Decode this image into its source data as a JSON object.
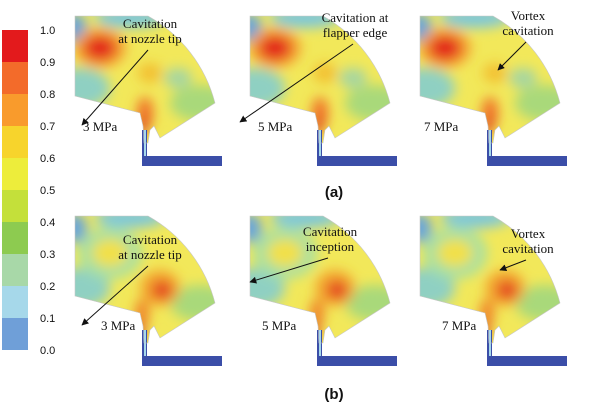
{
  "colorbar": {
    "ticks": [
      "1.0",
      "0.9",
      "0.8",
      "0.7",
      "0.6",
      "0.5",
      "0.4",
      "0.3",
      "0.2",
      "0.1",
      "0.0"
    ],
    "colors": [
      "#e31a1c",
      "#f36b2a",
      "#f99b2c",
      "#f7d42c",
      "#eded3b",
      "#c4e03a",
      "#8dcb50",
      "#a8d8a8",
      "#a6d8ea",
      "#6f9fd8",
      "#3b4ea8"
    ]
  },
  "rows": [
    {
      "label": "(a)",
      "panels": [
        {
          "pressure": "3 MPa",
          "annotation": [
            "Cavitation",
            "at nozzle tip"
          ]
        },
        {
          "pressure": "5 MPa",
          "annotation": [
            "Cavitation at",
            "flapper edge"
          ]
        },
        {
          "pressure": "7 MPa",
          "annotation": [
            "Vortex",
            "cavitation"
          ]
        }
      ]
    },
    {
      "label": "(b)",
      "panels": [
        {
          "pressure": "3 MPa",
          "annotation": [
            "Cavitation",
            "at nozzle tip"
          ]
        },
        {
          "pressure": "5 MPa",
          "annotation": [
            "Cavitation",
            "inception"
          ]
        },
        {
          "pressure": "7 MPa",
          "annotation": [
            "Vortex",
            "cavitation"
          ]
        }
      ]
    }
  ]
}
